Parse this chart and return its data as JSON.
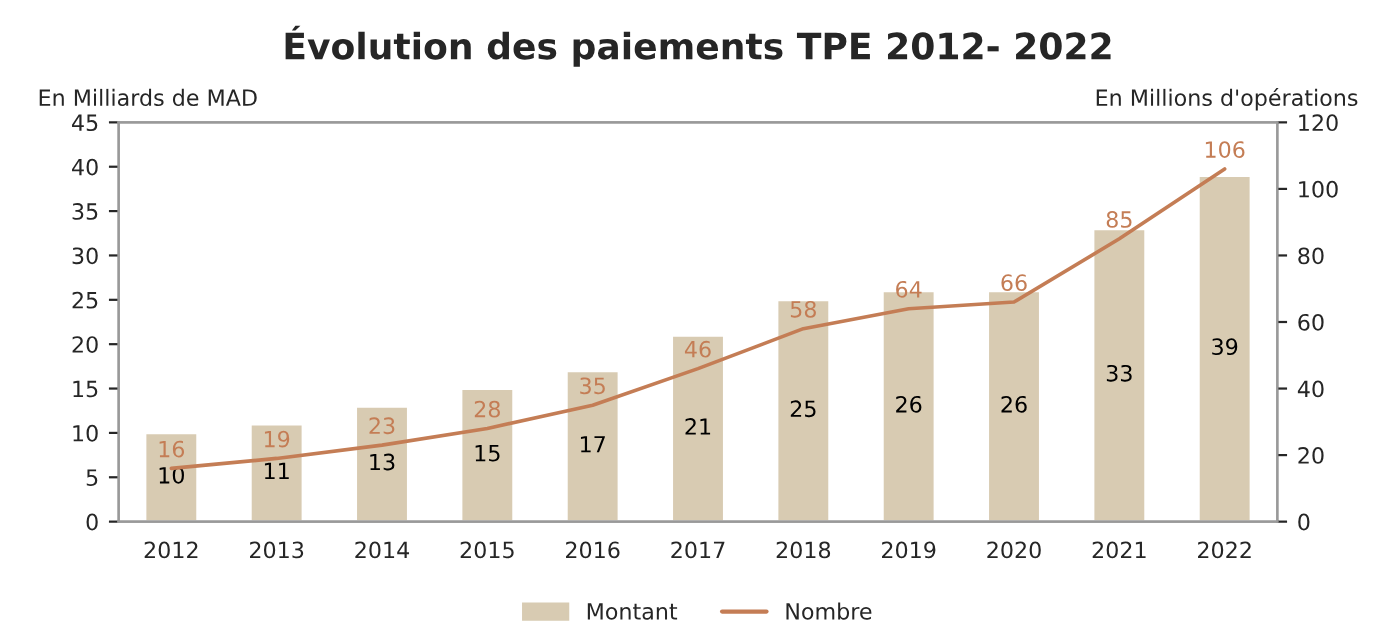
{
  "chart_data": {
    "type": "bar",
    "title": "Évolution des paiements TPE 2012- 2022",
    "ylabel": "En Milliards de MAD",
    "y2label": "En Millions d'opérations",
    "categories": [
      "2012",
      "2013",
      "2014",
      "2015",
      "2016",
      "2017",
      "2018",
      "2019",
      "2020",
      "2021",
      "2022"
    ],
    "series": [
      {
        "name": "Montant",
        "color": "#d8cbb2",
        "values": [
          10,
          11,
          13,
          15,
          17,
          21,
          25,
          26,
          26,
          33,
          39
        ]
      },
      {
        "name": "Nombre",
        "type": "line",
        "axis": "y2",
        "color": "#c47d55",
        "values": [
          16,
          19,
          23,
          28,
          35,
          46,
          58,
          64,
          66,
          85,
          106
        ]
      }
    ],
    "ylim": [
      0,
      45
    ],
    "yticks": [
      0,
      5,
      10,
      15,
      20,
      25,
      30,
      35,
      40,
      45
    ],
    "y2lim": [
      0,
      120
    ],
    "y2ticks": [
      0,
      20,
      40,
      60,
      80,
      100,
      120
    ],
    "data_labels": true,
    "grid": false,
    "legend": "bottom",
    "marker": "none",
    "line_style": "solid"
  }
}
